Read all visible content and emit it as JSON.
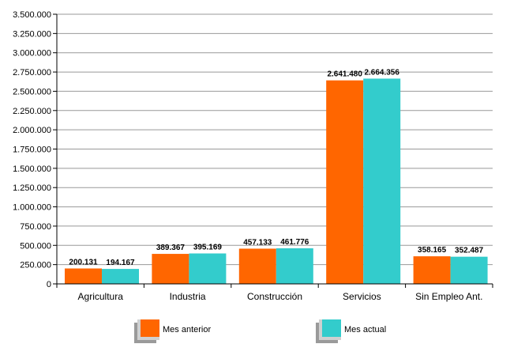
{
  "chart_data": {
    "type": "bar",
    "categories": [
      "Agricultura",
      "Industria",
      "Construcción",
      "Servicios",
      "Sin Empleo Ant."
    ],
    "series": [
      {
        "name": "Mes anterior",
        "color": "#ff6600",
        "values": [
          200131,
          389367,
          457133,
          2641480,
          358165
        ],
        "labels": [
          "200.131",
          "389.367",
          "457.133",
          "2.641.480",
          "358.165"
        ]
      },
      {
        "name": "Mes actual",
        "color": "#33cccc",
        "values": [
          194167,
          395169,
          461776,
          2664356,
          352487
        ],
        "labels": [
          "194.167",
          "395.169",
          "461.776",
          "2.664.356",
          "352.487"
        ]
      }
    ],
    "ylim": [
      0,
      3500000
    ],
    "yticks": [
      0,
      250000,
      500000,
      750000,
      1000000,
      1250000,
      1500000,
      1750000,
      2000000,
      2250000,
      2500000,
      2750000,
      3000000,
      3250000,
      3500000
    ],
    "ytick_labels": [
      "0",
      "250.000",
      "500.000",
      "750.000",
      "1.000.000",
      "1.250.000",
      "1.500.000",
      "1.750.000",
      "2.000.000",
      "2.250.000",
      "2.500.000",
      "2.750.000",
      "3.000.000",
      "3.250.000",
      "3.500.000"
    ],
    "grid": true,
    "legend": "bottom",
    "gridline_color": "#999999"
  }
}
